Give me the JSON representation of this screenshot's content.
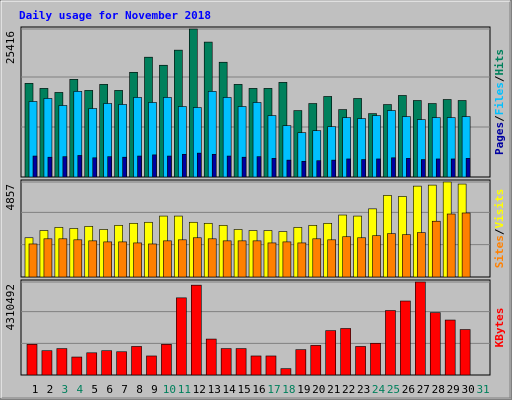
{
  "chart_data": [
    {
      "type": "bar",
      "title": "Daily usage for November 2018",
      "categories": [
        "1",
        "2",
        "3",
        "4",
        "5",
        "6",
        "7",
        "8",
        "9",
        "10",
        "11",
        "12",
        "13",
        "14",
        "15",
        "16",
        "17",
        "18",
        "19",
        "20",
        "21",
        "22",
        "23",
        "24",
        "25",
        "26",
        "27",
        "28",
        "29",
        "30",
        "31"
      ],
      "category_colors": [
        "#000000",
        "#000000",
        "#00805c",
        "#00805c",
        "#000000",
        "#000000",
        "#000000",
        "#000000",
        "#000000",
        "#00805c",
        "#00805c",
        "#000000",
        "#000000",
        "#000000",
        "#000000",
        "#000000",
        "#00805c",
        "#00805c",
        "#000000",
        "#000000",
        "#000000",
        "#000000",
        "#000000",
        "#00805c",
        "#00805c",
        "#000000",
        "#000000",
        "#000000",
        "#000000",
        "#000000",
        "#00805c"
      ],
      "ylim": [
        0,
        25416
      ],
      "yticks": [
        25416
      ],
      "separator": "/",
      "series": [
        {
          "name": "Hits",
          "color": "#00805c",
          "values": [
            16080,
            15215,
            14523,
            16771,
            14869,
            15907,
            14869,
            17981,
            20575,
            19192,
            21785,
            25416,
            23168,
            19710,
            15907,
            15215,
            15215,
            16252,
            11411,
            12622,
            13832,
            11584,
            13486,
            10893,
            12449,
            14005,
            13140,
            12622,
            13313,
            13140,
            null
          ]
        },
        {
          "name": "Files",
          "color": "#00c0ff",
          "values": [
            12968,
            13486,
            12276,
            14696,
            11757,
            12622,
            12449,
            13659,
            12794,
            13659,
            12103,
            11930,
            14696,
            13659,
            12103,
            12794,
            10547,
            8818,
            7607,
            7953,
            8645,
            10201,
            10028,
            10547,
            11411,
            10374,
            9855,
            10201,
            10201,
            10374,
            null
          ]
        },
        {
          "name": "Pages",
          "color": "#0000a0",
          "values": [
            3600,
            3400,
            3500,
            3700,
            3300,
            3500,
            3400,
            3600,
            3800,
            3600,
            3900,
            4100,
            3900,
            3600,
            3400,
            3500,
            3200,
            2900,
            2700,
            2800,
            2900,
            3100,
            3000,
            3100,
            3300,
            3200,
            3000,
            3100,
            3100,
            3200,
            null
          ]
        }
      ]
    },
    {
      "type": "bar",
      "categories": [
        "1",
        "2",
        "3",
        "4",
        "5",
        "6",
        "7",
        "8",
        "9",
        "10",
        "11",
        "12",
        "13",
        "14",
        "15",
        "16",
        "17",
        "18",
        "19",
        "20",
        "21",
        "22",
        "23",
        "24",
        "25",
        "26",
        "27",
        "28",
        "29",
        "30",
        "31"
      ],
      "ylim": [
        0,
        4857
      ],
      "yticks": [
        4857
      ],
      "separator": "/",
      "series": [
        {
          "name": "Visits",
          "color": "#ffff00",
          "values": [
            2006,
            2376,
            2534,
            2481,
            2587,
            2429,
            2640,
            2745,
            2798,
            3115,
            3115,
            2798,
            2745,
            2640,
            2429,
            2376,
            2376,
            2323,
            2534,
            2640,
            2745,
            3168,
            3115,
            3484,
            4171,
            4118,
            4646,
            4698,
            4857,
            4752,
            null
          ]
        },
        {
          "name": "Sites",
          "color": "#ff8000",
          "values": [
            1689,
            1953,
            1953,
            1901,
            1848,
            1795,
            1795,
            1742,
            1689,
            1848,
            1901,
            2006,
            1953,
            1848,
            1848,
            1848,
            1742,
            1795,
            1742,
            1953,
            1901,
            2059,
            2006,
            2112,
            2217,
            2165,
            2270,
            2851,
            3220,
            3273,
            null
          ]
        }
      ]
    },
    {
      "type": "bar",
      "categories": [
        "1",
        "2",
        "3",
        "4",
        "5",
        "6",
        "7",
        "8",
        "9",
        "10",
        "11",
        "12",
        "13",
        "14",
        "15",
        "16",
        "17",
        "18",
        "19",
        "20",
        "21",
        "22",
        "23",
        "24",
        "25",
        "26",
        "27",
        "28",
        "29",
        "30",
        "31"
      ],
      "category_colors": [
        "#000000",
        "#000000",
        "#00805c",
        "#00805c",
        "#000000",
        "#000000",
        "#000000",
        "#000000",
        "#000000",
        "#00805c",
        "#00805c",
        "#000000",
        "#000000",
        "#000000",
        "#000000",
        "#000000",
        "#00805c",
        "#00805c",
        "#000000",
        "#000000",
        "#000000",
        "#000000",
        "#000000",
        "#00805c",
        "#00805c",
        "#000000",
        "#000000",
        "#000000",
        "#000000",
        "#000000",
        "#00805c"
      ],
      "ylim": [
        0,
        4310492
      ],
      "yticks": [
        4310492
      ],
      "series": [
        {
          "name": "KBytes",
          "color": "#ff0000",
          "values": [
            1420510,
            1126609,
            1224575,
            832711,
            1028643,
            1126609,
            1077626,
            1322541,
            881694,
            1420510,
            3575759,
            4163552,
            1665422,
            1224575,
            1224575,
            881694,
            881694,
            293898,
            1175592,
            1371524,
            2057286,
            2155246,
            1322541,
            1469488,
            2987963,
            3428800,
            4310492,
            2889997,
            2547111,
            2106264,
            null
          ]
        }
      ]
    }
  ]
}
